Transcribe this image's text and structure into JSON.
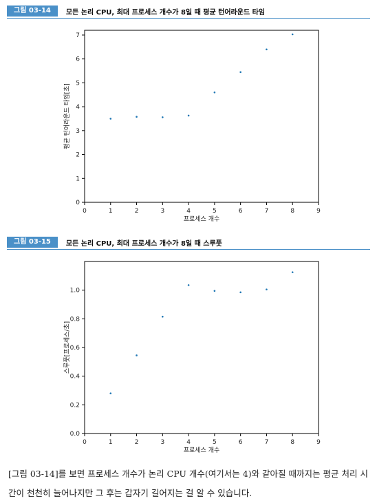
{
  "figures": [
    {
      "badge": "그림 03-14",
      "title": "모든 논리 CPU, 최대 프로세스 개수가 8일 때 평균 턴어라운드 타임",
      "chart_data": {
        "type": "scatter",
        "xlabel": "프로세스 개수",
        "ylabel": "평균 턴어라운드 타임[초]",
        "xlim": [
          0,
          9
        ],
        "ylim": [
          0,
          7.2
        ],
        "xticks": [
          "0",
          "1",
          "2",
          "3",
          "4",
          "5",
          "6",
          "7",
          "8",
          "9"
        ],
        "yticks": [
          "0",
          "1",
          "2",
          "3",
          "4",
          "5",
          "6",
          "7"
        ],
        "x": [
          1,
          2,
          3,
          4,
          5,
          6,
          7,
          8
        ],
        "y": [
          3.5,
          3.58,
          3.56,
          3.63,
          4.6,
          5.45,
          6.4,
          7.03
        ],
        "color": "#1f77b4"
      }
    },
    {
      "badge": "그림 03-15",
      "title": "모든 논리 CPU, 최대 프로세스 개수가 8일 때 스루풋",
      "chart_data": {
        "type": "scatter",
        "xlabel": "프로세스 개수",
        "ylabel": "스루풋[프로세스/초]",
        "xlim": [
          0,
          9
        ],
        "ylim": [
          0,
          1.2
        ],
        "xticks": [
          "0",
          "1",
          "2",
          "3",
          "4",
          "5",
          "6",
          "7",
          "8",
          "9"
        ],
        "yticks": [
          "0.0",
          "0.2",
          "0.4",
          "0.6",
          "0.8",
          "1.0"
        ],
        "x": [
          1,
          2,
          3,
          4,
          5,
          6,
          7,
          8
        ],
        "y": [
          0.28,
          0.545,
          0.815,
          1.035,
          0.995,
          0.985,
          1.005,
          1.125
        ],
        "color": "#1f77b4"
      }
    }
  ],
  "caption": "[그림 03-14]를 보면 프로세스 개수가 논리 CPU 개수(여기서는 4)와 같아질 때까지는 평균 처리 시간이 천천히 늘어나지만 그 후는 갑자기 길어지는 걸 알 수 있습니다."
}
